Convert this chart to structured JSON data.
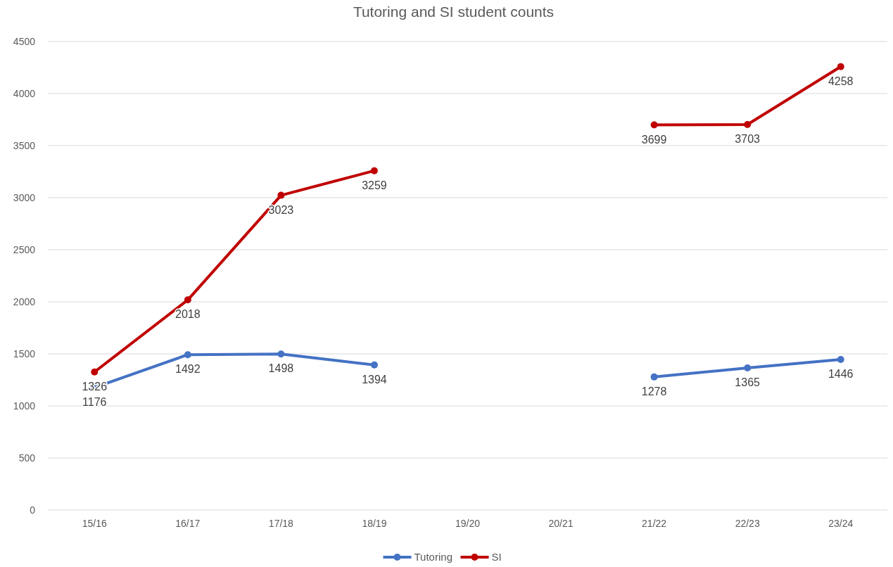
{
  "chart_data": {
    "type": "line",
    "title": "Tutoring and SI student counts",
    "categories": [
      "15/16",
      "16/17",
      "17/18",
      "18/19",
      "19/20",
      "20/21",
      "21/22",
      "22/23",
      "23/24"
    ],
    "series": [
      {
        "name": "Tutoring",
        "color": "#4472c4",
        "values": [
          1176,
          1492,
          1498,
          1394,
          null,
          null,
          1278,
          1365,
          1446
        ]
      },
      {
        "name": "SI",
        "color": "#c00000",
        "values": [
          1326,
          2018,
          3023,
          3259,
          null,
          null,
          3699,
          3703,
          4258
        ]
      }
    ],
    "ylim": [
      0,
      4500
    ],
    "yticks": [
      0,
      500,
      1000,
      1500,
      2000,
      2500,
      3000,
      3500,
      4000,
      4500
    ],
    "grid": "y",
    "legend": "bottom",
    "marker": "circle",
    "line_style": "solid",
    "data_labels": true
  }
}
